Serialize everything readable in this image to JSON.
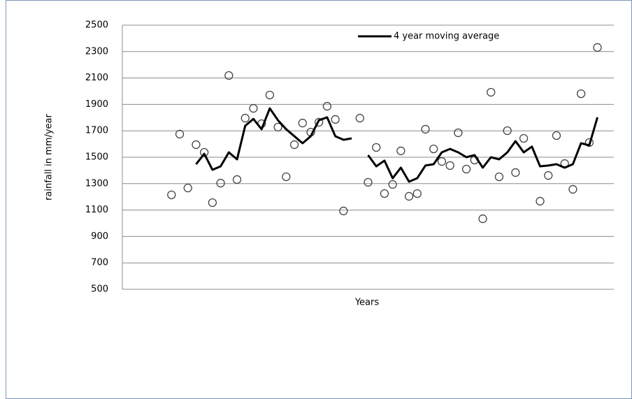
{
  "chart_data": {
    "type": "scatter",
    "x_label": "Years",
    "y_label": "rainfall in mm/year",
    "x": [
      1,
      2,
      3,
      4,
      5,
      6,
      7,
      8,
      9,
      10,
      11,
      12,
      13,
      14,
      15,
      16,
      17,
      18,
      19,
      20,
      21,
      22,
      23,
      24,
      25,
      26,
      27,
      28,
      29,
      30,
      31,
      32,
      33,
      34,
      35,
      36,
      37,
      38,
      39,
      40,
      41,
      42,
      43,
      44,
      45,
      46,
      47,
      48,
      49,
      50,
      51,
      52,
      53
    ],
    "series": [
      {
        "color": "#444444",
        "marker": "circle",
        "values": [
          1215,
          1675,
          1267,
          1595,
          1537,
          1156,
          1304,
          2119,
          1331,
          1796,
          1870,
          1754,
          1971,
          1728,
          1352,
          1595,
          1759,
          1690,
          1765,
          1886,
          1786,
          1093,
          null,
          1796,
          1310,
          1574,
          1225,
          1294,
          1548,
          1204,
          1225,
          1712,
          1563,
          1468,
          1437,
          1685,
          1410,
          1479,
          1034,
          1992,
          1352,
          1701,
          1384,
          1643,
          null,
          1167,
          1362,
          1664,
          1452,
          1257,
          1981,
          1611,
          2331
        ]
      },
      {
        "name": "4 year moving average",
        "color": "#000000",
        "marker": "line",
        "values": [
          null,
          null,
          null,
          1447,
          1526,
          1405,
          1431,
          1537,
          1484,
          1738,
          1790,
          1712,
          1870,
          1780,
          1712,
          1659,
          1606,
          1659,
          1780,
          1802,
          1659,
          1632,
          1643,
          null,
          1516,
          1431,
          1474,
          1341,
          1421,
          1315,
          1341,
          1437,
          1447,
          1537,
          1563,
          1537,
          1500,
          1516,
          1421,
          1500,
          1484,
          1537,
          1622,
          1537,
          1580,
          1431,
          1437,
          1447,
          1421,
          1447,
          1606,
          1590,
          1802
        ]
      }
    ],
    "xlim": [
      -5,
      55
    ],
    "ylim": [
      500,
      2500
    ],
    "yticks": [
      500,
      700,
      900,
      1100,
      1300,
      1500,
      1700,
      1900,
      2100,
      2300,
      2500
    ],
    "grid": true,
    "legend": "top-right"
  }
}
